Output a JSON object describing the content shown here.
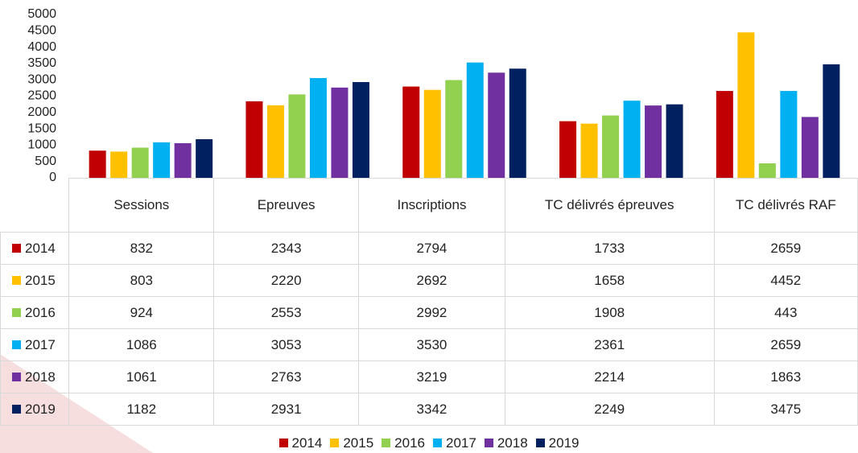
{
  "chart_data": {
    "type": "bar",
    "categories": [
      "Sessions",
      "Epreuves",
      "Inscriptions",
      "TC délivrés épreuves",
      "TC délivrés RAF"
    ],
    "series": [
      {
        "name": "2014",
        "color": "#c00000",
        "values": [
          832,
          2343,
          2794,
          1733,
          2659
        ]
      },
      {
        "name": "2015",
        "color": "#ffc000",
        "values": [
          803,
          2220,
          2692,
          1658,
          4452
        ]
      },
      {
        "name": "2016",
        "color": "#92d050",
        "values": [
          924,
          2553,
          2992,
          1908,
          443
        ]
      },
      {
        "name": "2017",
        "color": "#00b0f0",
        "values": [
          1086,
          3053,
          3530,
          2361,
          2659
        ]
      },
      {
        "name": "2018",
        "color": "#7030a0",
        "values": [
          1061,
          2763,
          3219,
          2214,
          1863
        ]
      },
      {
        "name": "2019",
        "color": "#002060",
        "values": [
          1182,
          2931,
          3342,
          2249,
          3475
        ]
      }
    ],
    "ylim": [
      0,
      5000
    ],
    "yticks": [
      0,
      500,
      1000,
      1500,
      2000,
      2500,
      3000,
      3500,
      4000,
      4500,
      5000
    ],
    "grid": false,
    "legend": "bottom"
  }
}
